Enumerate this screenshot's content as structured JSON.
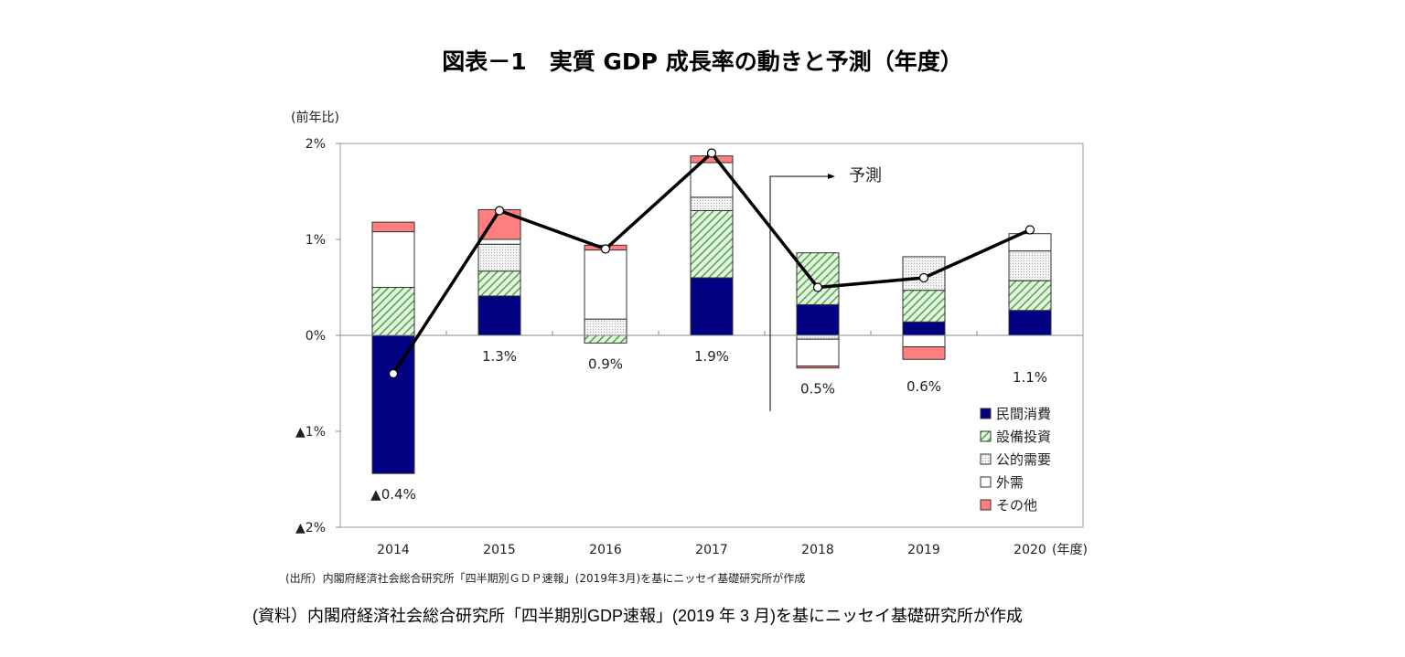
{
  "title": "図表－1　実質 GDP 成長率の動きと予測（年度）",
  "resource_note": "(資料）内閣府経済社会総合研究所「四半期別GDP速報」(2019 年 3 月)を基にニッセイ基礎研究所が作成",
  "chart_data": {
    "type": "bar",
    "stacked": true,
    "ylabel": "(前年比)",
    "xlabel": "(年度)",
    "ylim": [
      -2,
      2
    ],
    "yticks": [
      2,
      1,
      0,
      -1,
      -2
    ],
    "ytick_labels": [
      "2%",
      "1%",
      "0%",
      "▲1%",
      "▲2%"
    ],
    "categories": [
      "2014",
      "2015",
      "2016",
      "2017",
      "2018",
      "2019",
      "2020"
    ],
    "series": [
      {
        "name": "民間消費",
        "color": "#000080",
        "fill": "solid",
        "values": [
          -1.44,
          0.41,
          0.0,
          0.6,
          0.32,
          0.14,
          0.26
        ]
      },
      {
        "name": "設備投資",
        "color": "#5fb85f",
        "fill": "hatch",
        "values": [
          0.5,
          0.26,
          -0.08,
          0.7,
          0.54,
          0.33,
          0.31
        ]
      },
      {
        "name": "公的需要",
        "color": "#bbbbbb",
        "fill": "dots",
        "values": [
          0.0,
          0.28,
          0.17,
          0.14,
          -0.04,
          0.35,
          0.31
        ]
      },
      {
        "name": "外需",
        "color": "#ffffff",
        "fill": "solid",
        "values": [
          0.58,
          0.05,
          0.72,
          0.36,
          -0.28,
          -0.12,
          0.18
        ]
      },
      {
        "name": "その他",
        "color": "#ff7f7f",
        "fill": "solid",
        "values": [
          0.1,
          0.31,
          0.05,
          0.07,
          -0.02,
          -0.13,
          0.0
        ]
      }
    ],
    "line": {
      "values": [
        -0.4,
        1.3,
        0.9,
        1.9,
        0.5,
        0.6,
        1.1
      ],
      "color": "#000000"
    },
    "data_labels": [
      "▲0.4%",
      "1.3%",
      "0.9%",
      "1.9%",
      "0.5%",
      "0.6%",
      "1.1%"
    ],
    "forecast_annotation": {
      "label": "予測",
      "starts_after": "2017"
    },
    "legend_position": "bottom-right",
    "grid": false,
    "source_note": "(出所）内閣府経済社会総合研究所「四半期別ＧＤＰ速報」(2019年3月)を基にニッセイ基礎研究所が作成"
  }
}
